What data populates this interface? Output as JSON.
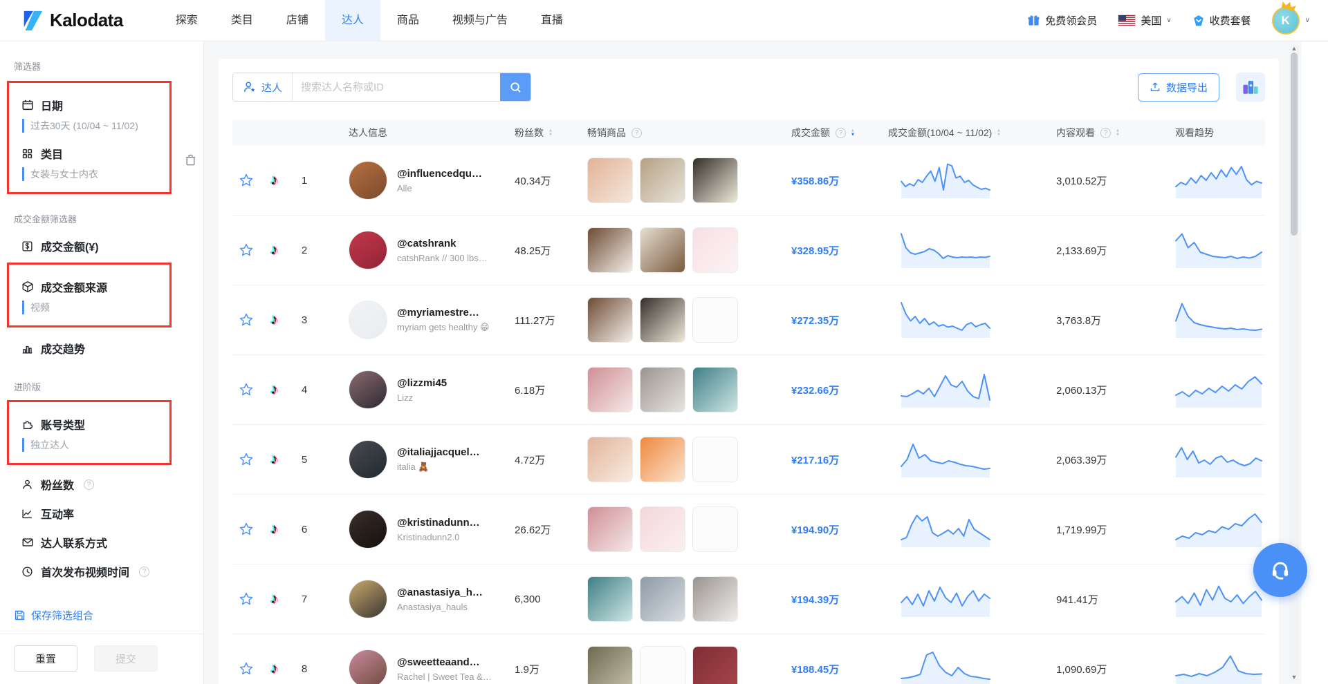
{
  "header": {
    "logo_text": "Kalodata",
    "nav": [
      {
        "label": "探索",
        "active": false
      },
      {
        "label": "类目",
        "active": false
      },
      {
        "label": "店铺",
        "active": false
      },
      {
        "label": "达人",
        "active": true
      },
      {
        "label": "商品",
        "active": false
      },
      {
        "label": "视频与广告",
        "active": false
      },
      {
        "label": "直播",
        "active": false
      }
    ],
    "free_member": "免费领会员",
    "region": "美国",
    "pricing": "收费套餐",
    "avatar_initial": "K"
  },
  "sidebar": {
    "filters_title": "筛选器",
    "date": {
      "label": "日期",
      "value": "过去30天 (10/04 ~ 11/02)",
      "icon": "calendar-icon"
    },
    "category": {
      "label": "类目",
      "value": "女装与女士内衣",
      "icon": "grid-icon"
    },
    "gmv_section": "成交金额筛选器",
    "gmv": {
      "label": "成交金额(¥)",
      "icon": "dollar-icon"
    },
    "gmv_source": {
      "label": "成交金额来源",
      "value": "视频",
      "icon": "cube-icon"
    },
    "gmv_trend": {
      "label": "成交趋势",
      "icon": "bar-chart-icon"
    },
    "advanced_title": "进阶版",
    "account_type": {
      "label": "账号类型",
      "value": "独立达人",
      "icon": "puzzle-icon"
    },
    "followers": {
      "label": "粉丝数",
      "icon": "person-icon",
      "help": true
    },
    "engagement": {
      "label": "互动率",
      "icon": "line-chart-icon"
    },
    "contact": {
      "label": "达人联系方式",
      "icon": "envelope-icon"
    },
    "first_video": {
      "label": "首次发布视频时间",
      "icon": "clock-icon",
      "help": true
    },
    "save_label": "保存筛选组合",
    "reset_label": "重置",
    "submit_label": "提交"
  },
  "toolbar": {
    "entity_label": "达人",
    "search_placeholder": "搜索达人名称或ID",
    "export_label": "数据导出"
  },
  "table": {
    "headers": [
      {
        "label": "达人信息",
        "help": false,
        "sort": "none"
      },
      {
        "label": "粉丝数",
        "help": false,
        "sort": "both"
      },
      {
        "label": "畅销商品",
        "help": true,
        "sort": "none"
      },
      {
        "label": "成交金额",
        "help": true,
        "sort": "desc"
      },
      {
        "label": "成交金额(10/04 ~ 11/02)",
        "help": false,
        "sort": "both"
      },
      {
        "label": "内容观看",
        "help": true,
        "sort": "both"
      },
      {
        "label": "观看趋势",
        "help": false,
        "sort": "none"
      }
    ],
    "rows": [
      {
        "rank": "1",
        "handle": "@influencedqu…",
        "subtitle": "Alle",
        "followers": "40.34万",
        "amount": "¥358.86万",
        "views": "3,010.52万",
        "avatar": [
          "#b7703f",
          "#7a4a2e"
        ],
        "products": [
          [
            "#e3b394",
            "#f2e8de"
          ],
          [
            "#b5a184",
            "#e8e4da"
          ],
          [
            "#342e28",
            "#efe9db"
          ]
        ],
        "trend_amount": [
          45,
          30,
          38,
          32,
          50,
          42,
          60,
          75,
          45,
          85,
          20,
          95,
          90,
          55,
          60,
          42,
          48,
          35,
          28,
          22,
          25,
          20
        ],
        "trend_views": [
          30,
          42,
          35,
          55,
          40,
          62,
          48,
          70,
          52,
          78,
          58,
          85,
          65,
          88,
          50,
          35,
          45,
          40
        ]
      },
      {
        "rank": "2",
        "handle": "@catshrank",
        "subtitle": "catshRank // 300 lbs…",
        "followers": "48.25万",
        "amount": "¥328.95万",
        "views": "2,133.69万",
        "avatar": [
          "#c4384a",
          "#8f2436"
        ],
        "products": [
          [
            "#6e4b33",
            "#f3efe9"
          ],
          [
            "#e7ded0",
            "#7a5a3e"
          ],
          [
            "#f6dfe2",
            "#fdf4f5"
          ]
        ],
        "trend_amount": [
          95,
          55,
          40,
          36,
          40,
          44,
          52,
          48,
          38,
          24,
          32,
          28,
          26,
          28,
          27,
          28,
          26,
          28,
          27,
          30
        ],
        "trend_views": [
          75,
          95,
          55,
          70,
          42,
          36,
          30,
          28,
          26,
          30,
          24,
          28,
          25,
          30,
          42
        ]
      },
      {
        "rank": "3",
        "handle": "@myriamestre…",
        "subtitle": "myriam gets healthy 😁",
        "followers": "111.27万",
        "amount": "¥272.35万",
        "views": "3,763.8万",
        "avatar": [
          "#f1f3f6",
          "#e9ecf0"
        ],
        "products": [
          [
            "#6e4b33",
            "#f3efe9"
          ],
          [
            "#35302b",
            "#efe9db"
          ],
          null
        ],
        "trend_amount": [
          98,
          65,
          45,
          58,
          38,
          52,
          34,
          42,
          30,
          34,
          27,
          30,
          24,
          18,
          34,
          40,
          28,
          34,
          38,
          24
        ],
        "trend_views": [
          45,
          95,
          58,
          40,
          34,
          30,
          27,
          24,
          22,
          24,
          20,
          22,
          19,
          18,
          21
        ]
      },
      {
        "rank": "4",
        "handle": "@lizzmi45",
        "subtitle": "Lizz",
        "followers": "6.18万",
        "amount": "¥232.66万",
        "views": "2,060.13万",
        "avatar": [
          "#8a6a6e",
          "#2e2a33"
        ],
        "products": [
          [
            "#cf8f96",
            "#f5e8e6"
          ],
          [
            "#9a9490",
            "#e8e4e0"
          ],
          [
            "#3f7f86",
            "#cfe6e4"
          ]
        ],
        "trend_amount": [
          30,
          28,
          36,
          46,
          36,
          52,
          28,
          58,
          88,
          62,
          55,
          72,
          44,
          28,
          22,
          92,
          18
        ],
        "trend_views": [
          32,
          42,
          28,
          46,
          36,
          52,
          40,
          58,
          44,
          62,
          50,
          72,
          85,
          65
        ]
      },
      {
        "rank": "5",
        "handle": "@italiajjacquel…",
        "subtitle": "italia 🧸",
        "followers": "4.72万",
        "amount": "¥217.16万",
        "views": "2,063.39万",
        "avatar": [
          "#4a4a52",
          "#1f2a2e"
        ],
        "products": [
          [
            "#e2b49a",
            "#f7ece2"
          ],
          [
            "#f0883c",
            "#fbe3cf"
          ],
          null
        ],
        "trend_amount": [
          28,
          48,
          92,
          52,
          62,
          44,
          40,
          36,
          44,
          40,
          34,
          30,
          28,
          24,
          20,
          22
        ],
        "trend_views": [
          55,
          82,
          48,
          72,
          38,
          46,
          34,
          52,
          58,
          40,
          46,
          36,
          30,
          36,
          52,
          44
        ]
      },
      {
        "rank": "6",
        "handle": "@kristinadunn…",
        "subtitle": "Kristinadunn2.0",
        "followers": "26.62万",
        "amount": "¥194.90万",
        "views": "1,719.99万",
        "avatar": [
          "#3a2e2a",
          "#14100e"
        ],
        "products": [
          [
            "#cf8f96",
            "#f5e8e6"
          ],
          [
            "#f3d7da",
            "#fbf0f1"
          ],
          null
        ],
        "trend_amount": [
          18,
          24,
          62,
          88,
          72,
          84,
          38,
          28,
          36,
          46,
          34,
          50,
          28,
          76,
          48,
          38,
          28,
          18
        ],
        "trend_views": [
          18,
          28,
          22,
          38,
          32,
          44,
          38,
          55,
          48,
          64,
          58,
          78,
          92,
          68
        ]
      },
      {
        "rank": "7",
        "handle": "@anastasiya_h…",
        "subtitle": "Anastasiya_hauls",
        "followers": "6,300",
        "amount": "¥194.39万",
        "views": "941.41万",
        "avatar": [
          "#c9a96e",
          "#3a3632"
        ],
        "products": [
          [
            "#3f7f86",
            "#cfe6e4"
          ],
          [
            "#8e9aa6",
            "#d8dde2"
          ],
          [
            "#9a9490",
            "#efece9"
          ]
        ],
        "trend_amount": [
          38,
          55,
          32,
          62,
          28,
          72,
          42,
          82,
          52,
          38,
          65,
          28,
          55,
          72,
          42,
          62,
          50
        ],
        "trend_views": [
          40,
          55,
          35,
          65,
          30,
          75,
          45,
          85,
          50,
          40,
          60,
          35,
          55,
          70,
          45
        ]
      },
      {
        "rank": "8",
        "handle": "@sweetteaand…",
        "subtitle": "Rachel | Sweet Tea &…",
        "followers": "1.9万",
        "amount": "¥188.45万",
        "views": "1,090.69万",
        "avatar": [
          "#c98a9a",
          "#6e4a3f"
        ],
        "products": [
          [
            "#6b6a4f",
            "#c9c2ae"
          ],
          null,
          [
            "#7e2f35",
            "#a8454c"
          ]
        ],
        "trend_amount": [
          20,
          22,
          26,
          32,
          88,
          96,
          58,
          38,
          28,
          52,
          34,
          26,
          24,
          20,
          18
        ],
        "trend_views": [
          28,
          32,
          26,
          34,
          28,
          38,
          52,
          85,
          42,
          34,
          32,
          33
        ]
      }
    ]
  },
  "colors": {
    "accent_blue": "#2e7ef7",
    "spark_blue": "#4d92f8",
    "highlight_red": "#f5342e",
    "tiktok_cyan": "#25f4ee",
    "tiktok_pink": "#fe2c55"
  }
}
